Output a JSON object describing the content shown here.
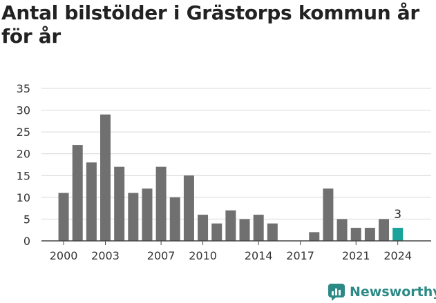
{
  "title": "Antal bilstölder i Grästorps kommun år för år",
  "brand": {
    "name": "Newsworthy",
    "icon": "newsworthy-logo-icon",
    "color": "#2b8a86"
  },
  "chart_data": {
    "type": "bar",
    "title": "Antal bilstölder i Grästorps kommun år för år",
    "xlabel": "",
    "ylabel": "",
    "categories": [
      "2000",
      "2001",
      "2002",
      "2003",
      "2004",
      "2005",
      "2006",
      "2007",
      "2008",
      "2009",
      "2010",
      "2011",
      "2012",
      "2013",
      "2014",
      "2015",
      "2016",
      "2017",
      "2018",
      "2019",
      "2020",
      "2021",
      "2022",
      "2023",
      "2024"
    ],
    "values": [
      11,
      22,
      18,
      29,
      17,
      11,
      12,
      17,
      10,
      15,
      6,
      4,
      7,
      5,
      6,
      4,
      0,
      0,
      2,
      12,
      5,
      3,
      3,
      5,
      3
    ],
    "xticks": [
      "2000",
      "2003",
      "2007",
      "2010",
      "2014",
      "2017",
      "2021",
      "2024"
    ],
    "yticks": [
      0,
      5,
      10,
      15,
      20,
      25,
      30,
      35
    ],
    "ylim": [
      0,
      35
    ],
    "grid": true,
    "bar_color": "#707070",
    "highlight_color": "#1aa39a",
    "highlight_index": 24,
    "annotation": {
      "category": "2024",
      "text": "3"
    }
  }
}
